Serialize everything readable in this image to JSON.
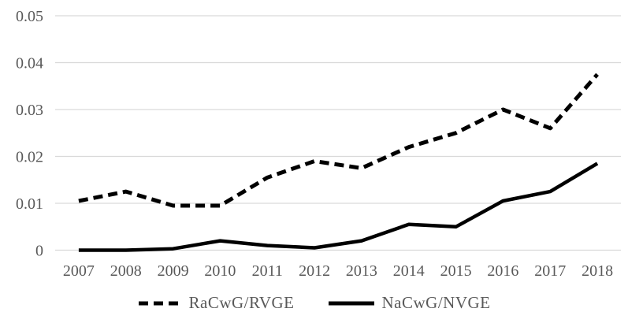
{
  "chart_data": {
    "type": "line",
    "title": "",
    "xlabel": "",
    "ylabel": "",
    "categories": [
      "2007",
      "2008",
      "2009",
      "2010",
      "2011",
      "2012",
      "2013",
      "2014",
      "2015",
      "2016",
      "2017",
      "2018"
    ],
    "series": [
      {
        "name": "RaCwG/RVGE",
        "style": "dashed",
        "color": "#000000",
        "values": [
          0.0105,
          0.0125,
          0.0095,
          0.0095,
          0.0155,
          0.019,
          0.0175,
          0.022,
          0.025,
          0.03,
          0.026,
          0.0375
        ]
      },
      {
        "name": "NaCwG/NVGE",
        "style": "solid",
        "color": "#000000",
        "values": [
          0.0,
          0.0,
          0.0003,
          0.002,
          0.001,
          0.0005,
          0.002,
          0.0055,
          0.005,
          0.0105,
          0.0125,
          0.0185
        ]
      }
    ],
    "ylim": [
      0,
      0.05
    ],
    "yticks": [
      {
        "value": 0.0,
        "label": "0"
      },
      {
        "value": 0.01,
        "label": "0.01"
      },
      {
        "value": 0.02,
        "label": "0.02"
      },
      {
        "value": 0.03,
        "label": "0.03"
      },
      {
        "value": 0.04,
        "label": "0.04"
      },
      {
        "value": 0.05,
        "label": "0.05"
      }
    ],
    "grid": "horizontal-only",
    "gridline_color": "#d9d9d9",
    "tick_label_color": "#595959",
    "legend_position": "bottom"
  }
}
